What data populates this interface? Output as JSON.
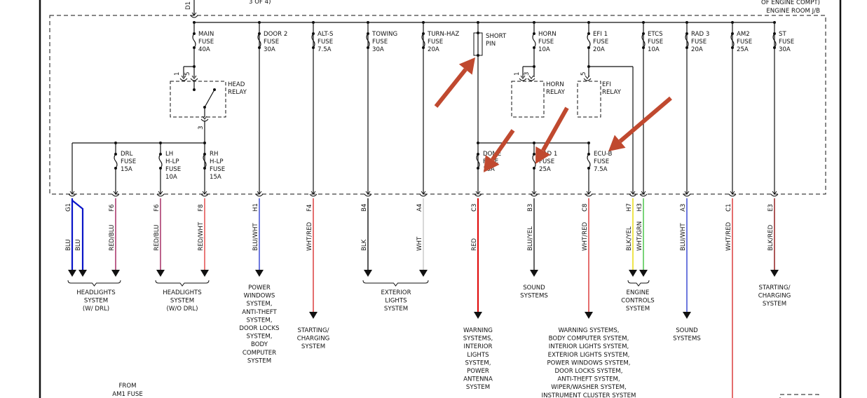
{
  "header": {
    "connector": "D1",
    "page_note": "3 OF 4)",
    "jb_title_1": "OF ENGINE COMPT)",
    "jb_title_2": "ENGINE ROOM J/B"
  },
  "top_fuses": [
    {
      "lines": [
        "MAIN",
        "FUSE",
        "40A"
      ]
    },
    {
      "lines": [
        "DOOR 2",
        "FUSE",
        "30A"
      ]
    },
    {
      "lines": [
        "ALT-S",
        "FUSE",
        "7.5A"
      ]
    },
    {
      "lines": [
        "TOWING",
        "FUSE",
        "30A"
      ]
    },
    {
      "lines": [
        "TURN-HAZ",
        "FUSE",
        "20A"
      ]
    },
    {
      "lines": [
        "SHORT",
        "PIN"
      ]
    },
    {
      "lines": [
        "HORN",
        "FUSE",
        "10A"
      ]
    },
    {
      "lines": [
        "EFI 1",
        "FUSE",
        "20A"
      ]
    },
    {
      "lines": [
        "ETCS",
        "FUSE",
        "10A"
      ]
    },
    {
      "lines": [
        "RAD 3",
        "FUSE",
        "20A"
      ]
    },
    {
      "lines": [
        "AM2",
        "FUSE",
        "25A"
      ]
    },
    {
      "lines": [
        "ST",
        "FUSE",
        "30A"
      ]
    }
  ],
  "relays": [
    {
      "lines": [
        "HEAD",
        "RELAY"
      ],
      "pins": [
        "1",
        "5",
        "3"
      ]
    },
    {
      "lines": [
        "HORN",
        "RELAY"
      ],
      "pins": [
        "1",
        "3"
      ]
    },
    {
      "lines": [
        "EFI",
        "RELAY"
      ],
      "pins": [
        "5"
      ]
    }
  ],
  "lower_fuses": [
    {
      "lines": [
        "DRL",
        "FUSE",
        "15A"
      ]
    },
    {
      "lines": [
        "LH",
        "H-LP",
        "FUSE",
        "10A"
      ]
    },
    {
      "lines": [
        "RH",
        "H-LP",
        "FUSE",
        "15A"
      ]
    },
    {
      "lines": [
        "DOME",
        "FUSE",
        "10A"
      ]
    },
    {
      "lines": [
        "RAD 1",
        "FUSE",
        "25A"
      ]
    },
    {
      "lines": [
        "ECU-B",
        "FUSE",
        "7.5A"
      ]
    }
  ],
  "wires": [
    {
      "connector": "G1",
      "color_codes": [
        "BLU",
        "BLU"
      ]
    },
    {
      "connector": "F6",
      "color_codes": [
        "RED/BLU"
      ]
    },
    {
      "connector": "F6",
      "color_codes": [
        "RED/BLU"
      ]
    },
    {
      "connector": "F8",
      "color_codes": [
        "RED/WHT"
      ]
    },
    {
      "connector": "H1",
      "color_codes": [
        "BLU/WHT"
      ]
    },
    {
      "connector": "F4",
      "color_codes": [
        "WHT/RED"
      ]
    },
    {
      "connector": "B4",
      "color_codes": [
        "BLK"
      ]
    },
    {
      "connector": "A4",
      "color_codes": [
        "WHT"
      ]
    },
    {
      "connector": "C3",
      "color_codes": [
        "RED"
      ]
    },
    {
      "connector": "B3",
      "color_codes": [
        "BLU/YEL"
      ]
    },
    {
      "connector": "C8",
      "color_codes": [
        "WHT/RED"
      ]
    },
    {
      "connector": "H7",
      "color_codes": [
        "BLK/YEL"
      ]
    },
    {
      "connector": "H3",
      "color_codes": [
        "WHT/GRN"
      ]
    },
    {
      "connector": "A3",
      "color_codes": [
        "BLU/WHT"
      ]
    },
    {
      "connector": "C1",
      "color_codes": [
        "WHT/RED"
      ]
    },
    {
      "connector": "E3",
      "color_codes": [
        "BLK/RED"
      ]
    }
  ],
  "destinations": [
    {
      "lines": [
        "HEADLIGHTS",
        "SYSTEM",
        "(W/ DRL)"
      ]
    },
    {
      "lines": [
        "HEADLIGHTS",
        "SYSTEM",
        "(W/O DRL)"
      ]
    },
    {
      "lines": [
        "POWER",
        "WINDOWS",
        "SYSTEM,",
        "ANTI-THEFT",
        "SYSTEM,",
        "DOOR LOCKS",
        "SYSTEM,",
        "BODY",
        "COMPUTER",
        "SYSTEM"
      ]
    },
    {
      "lines": [
        "STARTING/",
        "CHARGING",
        "SYSTEM"
      ]
    },
    {
      "lines": [
        "EXTERIOR",
        "LIGHTS",
        "SYSTEM"
      ]
    },
    {
      "lines": [
        "WARNING",
        "SYSTEMS,",
        "INTERIOR",
        "LIGHTS",
        "SYSTEM,",
        "POWER",
        "ANTENNA",
        "SYSTEM"
      ]
    },
    {
      "lines": [
        "SOUND",
        "SYSTEMS"
      ]
    },
    {
      "lines": [
        "WARNING SYSTEMS,",
        "BODY COMPUTER SYSTEM,",
        "INTERIOR LIGHTS SYSTEM,",
        "EXTERIOR LIGHTS SYSTEM,",
        "POWER WINDOWS SYSTEM,",
        "DOOR LOCKS SYSTEM,",
        "ANTI-THEFT SYSTEM,",
        "WIPER/WASHER SYSTEM,",
        "INSTRUMENT CLUSTER SYSTEM"
      ]
    },
    {
      "lines": [
        "ENGINE",
        "CONTROLS",
        "SYSTEM"
      ]
    },
    {
      "lines": [
        "SOUND",
        "SYSTEMS"
      ]
    },
    {
      "lines": [
        "STARTING/",
        "CHARGING",
        "SYSTEM"
      ]
    }
  ],
  "footer": {
    "lines": [
      "FROM",
      "AM1 FUSE"
    ]
  },
  "colors": {
    "annotation_arrow": "#c0492f",
    "BLU": "#0a14c8",
    "RED": "#e01010",
    "RED/BLU": "#a0205a",
    "RED/WHT": "#e04040",
    "BLU/WHT": "#3040d0",
    "WHT/RED": "#d83030",
    "BLK": "#111111",
    "WHT": "#c8c8c8",
    "BLU/YEL": "#222222",
    "BLK/YEL": "#e6d800",
    "WHT/GRN": "#40c040",
    "BLK/RED": "#8a1010"
  }
}
